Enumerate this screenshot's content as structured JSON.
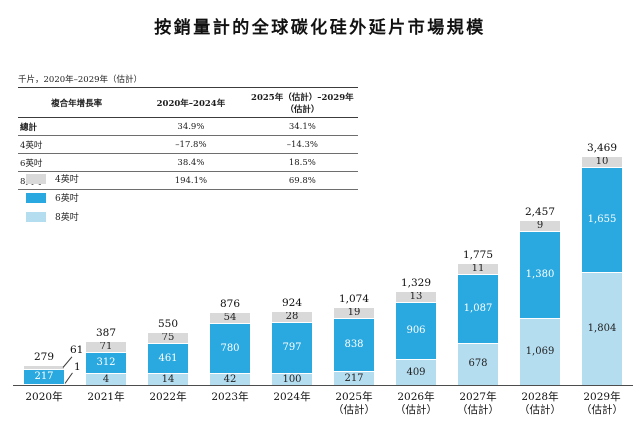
{
  "title": "按銷量計的全球碳化硅外延片市場規模",
  "unit_note": "千片，2020年–2029年（估計）",
  "table": {
    "headers": [
      "複合年增長率",
      "2020年–2024年",
      "2025年（估計）–2029年（估計）"
    ],
    "rows": [
      {
        "label": "總計",
        "v1": "34.9%",
        "v2": "34.1%"
      },
      {
        "label": "4英吋",
        "v1": "–17.8%",
        "v2": "–14.3%"
      },
      {
        "label": "6英吋",
        "v1": "38.4%",
        "v2": "18.5%"
      },
      {
        "label": "8英吋",
        "v1": "194.1%",
        "v2": "69.8%"
      }
    ]
  },
  "legend": {
    "items": [
      {
        "label": "4英吋",
        "color": "#d9d9d9"
      },
      {
        "label": "6英吋",
        "color": "#29a9e0"
      },
      {
        "label": "8英吋",
        "color": "#b5ddf0"
      }
    ]
  },
  "chart_data": {
    "type": "bar",
    "stacked": true,
    "title": "按銷量計的全球碳化硅外延片市場規模",
    "ylabel": "千片",
    "legend_position": "left",
    "grid": false,
    "axis_color": "#4d4d4d",
    "categories": [
      [
        "2020年"
      ],
      [
        "2021年"
      ],
      [
        "2022年"
      ],
      [
        "2023年"
      ],
      [
        "2024年"
      ],
      [
        "2025年",
        "（估計）"
      ],
      [
        "2026年",
        "（估計）"
      ],
      [
        "2027年",
        "（估計）"
      ],
      [
        "2028年",
        "（估計）"
      ],
      [
        "2029年",
        "（估計）"
      ]
    ],
    "series": [
      {
        "name": "8英吋",
        "color": "#b5ddf0",
        "values": [
          1,
          4,
          14,
          42,
          100,
          217,
          409,
          678,
          1069,
          1804
        ]
      },
      {
        "name": "6英吋",
        "color": "#29a9e0",
        "values": [
          217,
          312,
          461,
          780,
          797,
          838,
          906,
          1087,
          1380,
          1655
        ]
      },
      {
        "name": "4英吋",
        "color": "#d9d9d9",
        "values": [
          61,
          71,
          75,
          54,
          28,
          19,
          13,
          11,
          9,
          10
        ]
      }
    ],
    "totals": [
      "279",
      "387",
      "550",
      "876",
      "924",
      "1,074",
      "1,329",
      "1,775",
      "2,457",
      "3,469"
    ]
  }
}
